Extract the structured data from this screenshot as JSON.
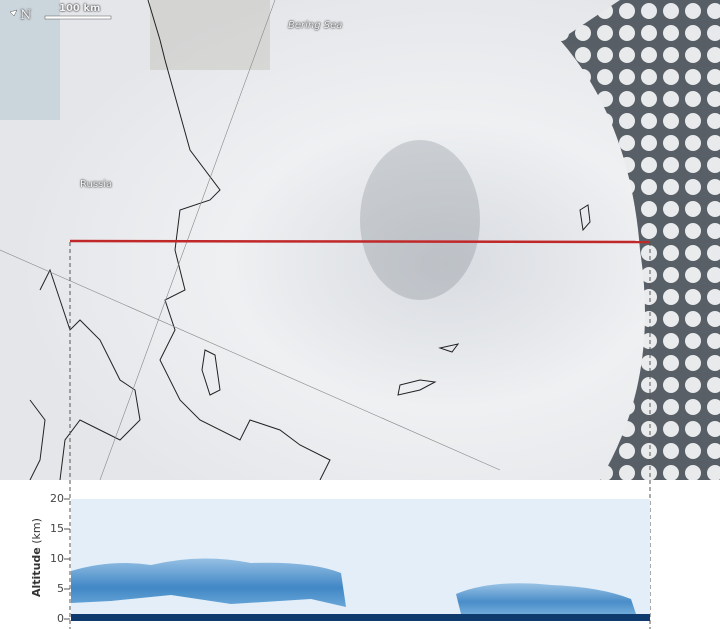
{
  "map": {
    "scale_bar_label": "100 km",
    "north_arrow": "N",
    "labels": {
      "sea": "Bering Sea",
      "country": "Russia"
    },
    "transect_color": "#c0282a"
  },
  "profile": {
    "y_axis_label_bold": "Altitude",
    "y_axis_label_unit": " (km)",
    "ticks": [
      "20",
      "15",
      "10",
      "5",
      "0"
    ],
    "sky_color": "#e3eef8",
    "cloud_color": "#3a86c6",
    "surface_color": "#0e3a6e"
  }
}
